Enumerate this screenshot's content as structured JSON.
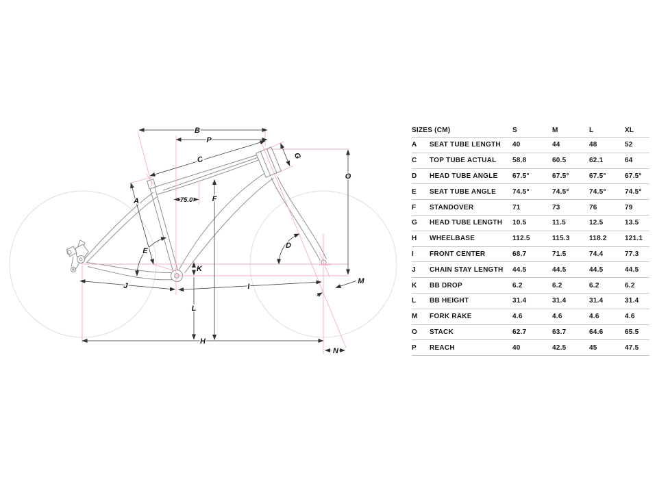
{
  "page": {
    "background": "#ffffff"
  },
  "colors": {
    "construction_pink": "#f2aec0",
    "frame_gray": "#8f8f8f",
    "wheel_gray": "#dedede",
    "dimension_black": "#2f2f2f",
    "table_rule": "#c6c6c6",
    "text": "#161616"
  },
  "diagram": {
    "labels": {
      "A": "A",
      "B": "B",
      "C": "C",
      "D": "D",
      "E": "E",
      "F": "F",
      "G": "G",
      "H": "H",
      "I": "I",
      "J": "J",
      "K": "K",
      "L": "L",
      "M": "M",
      "N": "N",
      "O": "O",
      "P": "P"
    },
    "seat_angle_note": "75.0"
  },
  "table": {
    "header": {
      "title": "SIZES (CM)",
      "columns": [
        "S",
        "M",
        "L",
        "XL"
      ]
    },
    "rows": [
      {
        "key": "A",
        "label": "SEAT TUBE LENGTH",
        "values": [
          "40",
          "44",
          "48",
          "52"
        ]
      },
      {
        "key": "C",
        "label": "TOP TUBE ACTUAL",
        "values": [
          "58.8",
          "60.5",
          "62.1",
          "64"
        ]
      },
      {
        "key": "D",
        "label": "HEAD TUBE ANGLE",
        "values": [
          "67.5°",
          "67.5°",
          "67.5°",
          "67.5°"
        ]
      },
      {
        "key": "E",
        "label": "SEAT TUBE ANGLE",
        "values": [
          "74.5°",
          "74.5°",
          "74.5°",
          "74.5°"
        ]
      },
      {
        "key": "F",
        "label": "STANDOVER",
        "values": [
          "71",
          "73",
          "76",
          "79"
        ]
      },
      {
        "key": "G",
        "label": "HEAD TUBE LENGTH",
        "values": [
          "10.5",
          "11.5",
          "12.5",
          "13.5"
        ]
      },
      {
        "key": "H",
        "label": "WHEELBASE",
        "values": [
          "112.5",
          "115.3",
          "118.2",
          "121.1"
        ]
      },
      {
        "key": "I",
        "label": "FRONT CENTER",
        "values": [
          "68.7",
          "71.5",
          "74.4",
          "77.3"
        ]
      },
      {
        "key": "J",
        "label": "CHAIN STAY LENGTH",
        "values": [
          "44.5",
          "44.5",
          "44.5",
          "44.5"
        ]
      },
      {
        "key": "K",
        "label": "BB DROP",
        "values": [
          "6.2",
          "6.2",
          "6.2",
          "6.2"
        ]
      },
      {
        "key": "L",
        "label": "BB HEIGHT",
        "values": [
          "31.4",
          "31.4",
          "31.4",
          "31.4"
        ]
      },
      {
        "key": "M",
        "label": "FORK RAKE",
        "values": [
          "4.6",
          "4.6",
          "4.6",
          "4.6"
        ]
      },
      {
        "key": "O",
        "label": "STACK",
        "values": [
          "62.7",
          "63.7",
          "64.6",
          "65.5"
        ]
      },
      {
        "key": "P",
        "label": "REACH",
        "values": [
          "40",
          "42.5",
          "45",
          "47.5"
        ]
      }
    ]
  }
}
